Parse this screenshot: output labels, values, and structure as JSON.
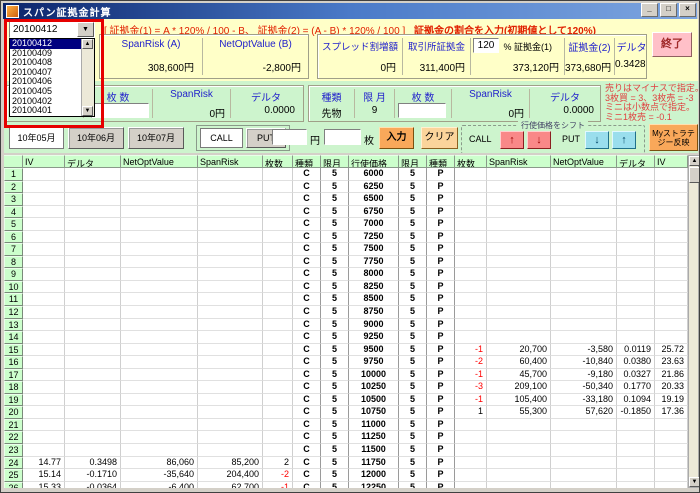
{
  "window": {
    "title": "スパン証拠金計算",
    "controls": {
      "minimize": "_",
      "maximize": "□",
      "close": "×"
    }
  },
  "top": {
    "formula": "[ 証拠金(1) = A * 120% / 100 - B、 証拠金(2) = (A - B) * 120% / 100 ]",
    "hint": "証拠金の割合を入力(初期値として120%)",
    "date_dropdown": {
      "value": "20100412",
      "options": [
        "20100412",
        "20100409",
        "20100408",
        "20100407",
        "20100406",
        "20100405",
        "20100402",
        "20100401"
      ]
    },
    "panel_a": {
      "span_risk_label": "SpanRisk (A)",
      "span_risk_value": "308,600円",
      "net_opt_label": "NetOptValue (B)",
      "net_opt_value": "-2,800円"
    },
    "panel_b": {
      "spread_label": "スプレッド割増額",
      "spread_value": "0円",
      "exchange_label": "取引所証拠金",
      "exchange_value": "311,400円",
      "rate_value": "120",
      "rate_suffix": "% 証拠金(1)",
      "margin1_value": "373,120円",
      "margin2_label": "証拠金(2)",
      "margin2_value": "373,680円",
      "delta_label": "デルタ",
      "delta_value": "0.3428"
    },
    "exit_button": "終了"
  },
  "mini_panel": {
    "qty_label": "枚 数",
    "span_risk_label": "SpanRisk",
    "delta_label": "デルタ",
    "span_risk_value": "0円",
    "delta_value": "0.0000"
  },
  "futures_panel": {
    "type_label": "種類",
    "month_label": "限 月",
    "qty_label": "枚 数",
    "span_risk_label": "SpanRisk",
    "delta_label": "デルタ",
    "type_value": "先物",
    "month_value": "9",
    "span_risk_value": "0円",
    "delta_value": "0.0000"
  },
  "note_lines": [
    "売りはマイナスで指定。",
    "3枚買 = 3、3枚売 = -3",
    "ミニは小数点で指定。",
    "ミニ1枚売 = -0.1"
  ],
  "toolbar": {
    "months": [
      "10年05月",
      "10年06月",
      "10年07月"
    ],
    "call_label": "CALL",
    "put_label": "PUT",
    "yen_label": "円",
    "mai_label": "枚",
    "input_button": "入力",
    "clear_button": "クリア",
    "shift_group_label": "行使価格をシフト",
    "shift_call_label": "CALL",
    "shift_put_label": "PUT",
    "up_arrow": "↑",
    "down_arrow": "↓",
    "my_strategy_line1": "Myストラテ",
    "my_strategy_line2": "ジー反映"
  },
  "table": {
    "headers": [
      "IV",
      "デルタ",
      "NetOptValue",
      "SpanRisk",
      "枚数",
      "種類",
      "限月",
      "行使価格",
      "限月",
      "種類",
      "枚数",
      "SpanRisk",
      "NetOptValue",
      "デルタ",
      "IV"
    ],
    "rows": [
      {
        "n": "1",
        "iv": "",
        "delta": "",
        "nov": "",
        "sr": "",
        "qty": "",
        "ct": "C",
        "cm": "5",
        "strike": "6000",
        "pm": "5",
        "pt": "P",
        "pqty": "",
        "psr": "",
        "pnov": "",
        "pdelta": "",
        "piv": ""
      },
      {
        "n": "2",
        "iv": "",
        "delta": "",
        "nov": "",
        "sr": "",
        "qty": "",
        "ct": "C",
        "cm": "5",
        "strike": "6250",
        "pm": "5",
        "pt": "P",
        "pqty": "",
        "psr": "",
        "pnov": "",
        "pdelta": "",
        "piv": ""
      },
      {
        "n": "3",
        "iv": "",
        "delta": "",
        "nov": "",
        "sr": "",
        "qty": "",
        "ct": "C",
        "cm": "5",
        "strike": "6500",
        "pm": "5",
        "pt": "P",
        "pqty": "",
        "psr": "",
        "pnov": "",
        "pdelta": "",
        "piv": ""
      },
      {
        "n": "4",
        "iv": "",
        "delta": "",
        "nov": "",
        "sr": "",
        "qty": "",
        "ct": "C",
        "cm": "5",
        "strike": "6750",
        "pm": "5",
        "pt": "P",
        "pqty": "",
        "psr": "",
        "pnov": "",
        "pdelta": "",
        "piv": ""
      },
      {
        "n": "5",
        "iv": "",
        "delta": "",
        "nov": "",
        "sr": "",
        "qty": "",
        "ct": "C",
        "cm": "5",
        "strike": "7000",
        "pm": "5",
        "pt": "P",
        "pqty": "",
        "psr": "",
        "pnov": "",
        "pdelta": "",
        "piv": ""
      },
      {
        "n": "6",
        "iv": "",
        "delta": "",
        "nov": "",
        "sr": "",
        "qty": "",
        "ct": "C",
        "cm": "5",
        "strike": "7250",
        "pm": "5",
        "pt": "P",
        "pqty": "",
        "psr": "",
        "pnov": "",
        "pdelta": "",
        "piv": ""
      },
      {
        "n": "7",
        "iv": "",
        "delta": "",
        "nov": "",
        "sr": "",
        "qty": "",
        "ct": "C",
        "cm": "5",
        "strike": "7500",
        "pm": "5",
        "pt": "P",
        "pqty": "",
        "psr": "",
        "pnov": "",
        "pdelta": "",
        "piv": ""
      },
      {
        "n": "8",
        "iv": "",
        "delta": "",
        "nov": "",
        "sr": "",
        "qty": "",
        "ct": "C",
        "cm": "5",
        "strike": "7750",
        "pm": "5",
        "pt": "P",
        "pqty": "",
        "psr": "",
        "pnov": "",
        "pdelta": "",
        "piv": ""
      },
      {
        "n": "9",
        "iv": "",
        "delta": "",
        "nov": "",
        "sr": "",
        "qty": "",
        "ct": "C",
        "cm": "5",
        "strike": "8000",
        "pm": "5",
        "pt": "P",
        "pqty": "",
        "psr": "",
        "pnov": "",
        "pdelta": "",
        "piv": ""
      },
      {
        "n": "10",
        "iv": "",
        "delta": "",
        "nov": "",
        "sr": "",
        "qty": "",
        "ct": "C",
        "cm": "5",
        "strike": "8250",
        "pm": "5",
        "pt": "P",
        "pqty": "",
        "psr": "",
        "pnov": "",
        "pdelta": "",
        "piv": ""
      },
      {
        "n": "11",
        "iv": "",
        "delta": "",
        "nov": "",
        "sr": "",
        "qty": "",
        "ct": "C",
        "cm": "5",
        "strike": "8500",
        "pm": "5",
        "pt": "P",
        "pqty": "",
        "psr": "",
        "pnov": "",
        "pdelta": "",
        "piv": ""
      },
      {
        "n": "12",
        "iv": "",
        "delta": "",
        "nov": "",
        "sr": "",
        "qty": "",
        "ct": "C",
        "cm": "5",
        "strike": "8750",
        "pm": "5",
        "pt": "P",
        "pqty": "",
        "psr": "",
        "pnov": "",
        "pdelta": "",
        "piv": ""
      },
      {
        "n": "13",
        "iv": "",
        "delta": "",
        "nov": "",
        "sr": "",
        "qty": "",
        "ct": "C",
        "cm": "5",
        "strike": "9000",
        "pm": "5",
        "pt": "P",
        "pqty": "",
        "psr": "",
        "pnov": "",
        "pdelta": "",
        "piv": ""
      },
      {
        "n": "14",
        "iv": "",
        "delta": "",
        "nov": "",
        "sr": "",
        "qty": "",
        "ct": "C",
        "cm": "5",
        "strike": "9250",
        "pm": "5",
        "pt": "P",
        "pqty": "",
        "psr": "",
        "pnov": "",
        "pdelta": "",
        "piv": ""
      },
      {
        "n": "15",
        "iv": "",
        "delta": "",
        "nov": "",
        "sr": "",
        "qty": "",
        "ct": "C",
        "cm": "5",
        "strike": "9500",
        "pm": "5",
        "pt": "P",
        "pqty": "-1",
        "psr": "20,700",
        "pnov": "-3,580",
        "pdelta": "0.0119",
        "piv": "25.72"
      },
      {
        "n": "16",
        "iv": "",
        "delta": "",
        "nov": "",
        "sr": "",
        "qty": "",
        "ct": "C",
        "cm": "5",
        "strike": "9750",
        "pm": "5",
        "pt": "P",
        "pqty": "-2",
        "psr": "60,400",
        "pnov": "-10,840",
        "pdelta": "0.0380",
        "piv": "23.63"
      },
      {
        "n": "17",
        "iv": "",
        "delta": "",
        "nov": "",
        "sr": "",
        "qty": "",
        "ct": "C",
        "cm": "5",
        "strike": "10000",
        "pm": "5",
        "pt": "P",
        "pqty": "-1",
        "psr": "45,700",
        "pnov": "-9,180",
        "pdelta": "0.0327",
        "piv": "21.86"
      },
      {
        "n": "18",
        "iv": "",
        "delta": "",
        "nov": "",
        "sr": "",
        "qty": "",
        "ct": "C",
        "cm": "5",
        "strike": "10250",
        "pm": "5",
        "pt": "P",
        "pqty": "-3",
        "psr": "209,100",
        "pnov": "-50,340",
        "pdelta": "0.1770",
        "piv": "20.33"
      },
      {
        "n": "19",
        "iv": "",
        "delta": "",
        "nov": "",
        "sr": "",
        "qty": "",
        "ct": "C",
        "cm": "5",
        "strike": "10500",
        "pm": "5",
        "pt": "P",
        "pqty": "-1",
        "psr": "105,400",
        "pnov": "-33,180",
        "pdelta": "0.1094",
        "piv": "19.19"
      },
      {
        "n": "20",
        "iv": "",
        "delta": "",
        "nov": "",
        "sr": "",
        "qty": "",
        "ct": "C",
        "cm": "5",
        "strike": "10750",
        "pm": "5",
        "pt": "P",
        "pqty": "1",
        "psr": "55,300",
        "pnov": "57,620",
        "pdelta": "-0.1850",
        "piv": "17.36"
      },
      {
        "n": "21",
        "iv": "",
        "delta": "",
        "nov": "",
        "sr": "",
        "qty": "",
        "ct": "C",
        "cm": "5",
        "strike": "11000",
        "pm": "5",
        "pt": "P",
        "pqty": "",
        "psr": "",
        "pnov": "",
        "pdelta": "",
        "piv": ""
      },
      {
        "n": "22",
        "iv": "",
        "delta": "",
        "nov": "",
        "sr": "",
        "qty": "",
        "ct": "C",
        "cm": "5",
        "strike": "11250",
        "pm": "5",
        "pt": "P",
        "pqty": "",
        "psr": "",
        "pnov": "",
        "pdelta": "",
        "piv": ""
      },
      {
        "n": "23",
        "iv": "",
        "delta": "",
        "nov": "",
        "sr": "",
        "qty": "",
        "ct": "C",
        "cm": "5",
        "strike": "11500",
        "pm": "5",
        "pt": "P",
        "pqty": "",
        "psr": "",
        "pnov": "",
        "pdelta": "",
        "piv": ""
      },
      {
        "n": "24",
        "iv": "14.77",
        "delta": "0.3498",
        "nov": "86,060",
        "sr": "85,200",
        "qty": "2",
        "ct": "C",
        "cm": "5",
        "strike": "11750",
        "pm": "5",
        "pt": "P",
        "pqty": "",
        "psr": "",
        "pnov": "",
        "pdelta": "",
        "piv": ""
      },
      {
        "n": "25",
        "iv": "15.14",
        "delta": "-0.1710",
        "nov": "-35,640",
        "sr": "204,400",
        "qty": "-2",
        "ct": "C",
        "cm": "5",
        "strike": "12000",
        "pm": "5",
        "pt": "P",
        "pqty": "",
        "psr": "",
        "pnov": "",
        "pdelta": "",
        "piv": ""
      },
      {
        "n": "26",
        "iv": "15.33",
        "delta": "-0.0364",
        "nov": "-6,400",
        "sr": "62,700",
        "qty": "-1",
        "ct": "C",
        "cm": "5",
        "strike": "12250",
        "pm": "5",
        "pt": "P",
        "pqty": "",
        "psr": "",
        "pnov": "",
        "pdelta": "",
        "piv": ""
      }
    ]
  }
}
